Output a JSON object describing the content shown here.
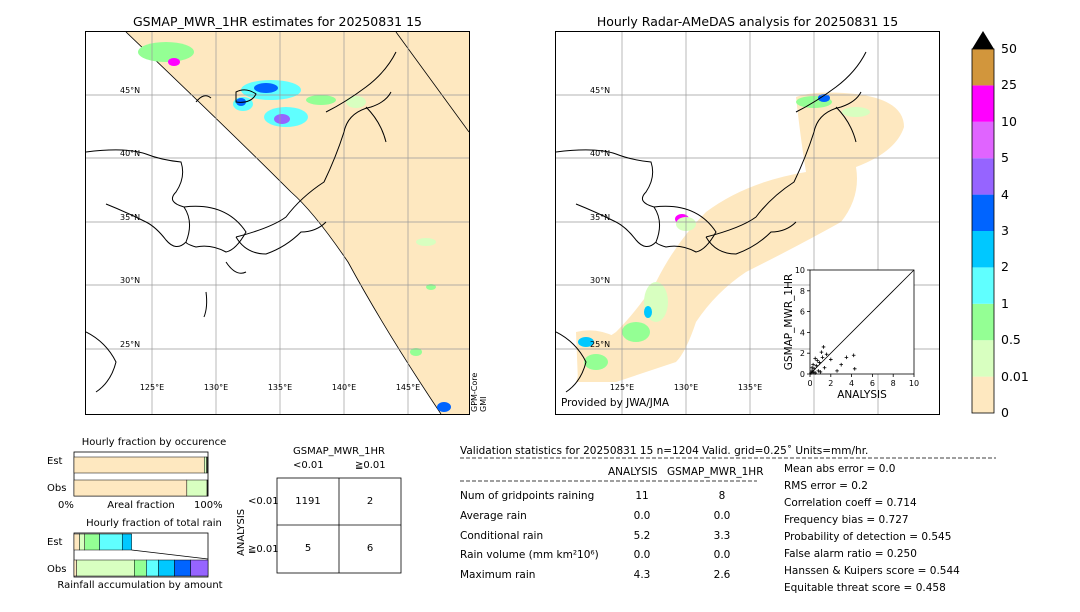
{
  "left_map": {
    "title": "GSMAP_MWR_1HR estimates for 20250831 15",
    "lat_labels": [
      "45°N",
      "40°N",
      "35°N",
      "30°N",
      "25°N"
    ],
    "lon_labels": [
      "125°E",
      "130°E",
      "135°E",
      "140°E",
      "145°E"
    ],
    "sat_label": "GPM-Core\nGMI"
  },
  "right_map": {
    "title": "Hourly Radar-AMeDAS analysis for 20250831 15",
    "lat_labels": [
      "45°N",
      "40°N",
      "35°N",
      "30°N",
      "25°N"
    ],
    "lon_labels": [
      "125°E",
      "130°E",
      "135°E"
    ],
    "credit": "Provided by JWA/JMA"
  },
  "colorbar": {
    "levels": [
      "0",
      "0.01",
      "0.5",
      "1",
      "2",
      "3",
      "4",
      "5",
      "10",
      "25",
      "50"
    ],
    "colors": [
      "#fee8c0",
      "#d8ffc0",
      "#94ff94",
      "#60ffff",
      "#00c8ff",
      "#0064ff",
      "#9664ff",
      "#e064ff",
      "#ff00ff",
      "#d2963c"
    ],
    "extend_color": "#000000"
  },
  "chart_data": [
    {
      "type": "scatter",
      "title": "",
      "xlabel": "ANALYSIS",
      "ylabel": "GSMAP_MWR_1HR",
      "xlim": [
        0,
        10
      ],
      "ylim": [
        0,
        10
      ],
      "xticks": [
        "0",
        "2",
        "4",
        "6",
        "8",
        "10"
      ],
      "yticks": [
        "0",
        "2",
        "4",
        "6",
        "8",
        "10"
      ],
      "points": [
        [
          0.1,
          0.1
        ],
        [
          0.2,
          0.3
        ],
        [
          0.3,
          0.2
        ],
        [
          0.4,
          0.5
        ],
        [
          0.5,
          0.1
        ],
        [
          0.6,
          0.8
        ],
        [
          0.2,
          0.6
        ],
        [
          0.8,
          0.3
        ],
        [
          1.0,
          0.2
        ],
        [
          0.9,
          1.1
        ],
        [
          1.2,
          1.6
        ],
        [
          1.4,
          0.6
        ],
        [
          1.6,
          1.9
        ],
        [
          0.7,
          1.3
        ],
        [
          1.1,
          2.1
        ],
        [
          1.3,
          2.6
        ],
        [
          2.0,
          1.4
        ],
        [
          2.6,
          0.3
        ],
        [
          3.0,
          0.9
        ],
        [
          3.5,
          1.6
        ],
        [
          4.2,
          1.8
        ],
        [
          4.3,
          0.5
        ],
        [
          0.3,
          0.9
        ],
        [
          0.5,
          1.5
        ]
      ]
    },
    {
      "type": "bar",
      "title": "Hourly fraction by occurence",
      "categories": [
        "Est",
        "Obs"
      ],
      "xlabel_left": "0%",
      "xlabel_center": "Areal fraction",
      "xlabel_right": "100%",
      "series": [
        {
          "values": [
            0.972,
            0.842
          ],
          "color": "#fee8c0"
        },
        {
          "values": [
            0.018,
            0.151
          ],
          "color": "#d8ffc0"
        },
        {
          "values": [
            0.01,
            0.007
          ],
          "color": "#2a2a2a"
        }
      ]
    },
    {
      "type": "bar",
      "title": "Hourly fraction of total rain",
      "categories": [
        "Est",
        "Obs"
      ],
      "xlabel_center": "Rainfall accumulation by amount",
      "series_colors": [
        "#fee8c0",
        "#d8ffc0",
        "#94ff94",
        "#60ffff",
        "#00c8ff",
        "#0064ff",
        "#9664ff"
      ],
      "est_segments": [
        0.04,
        0.04,
        0.11,
        0.17,
        0.07
      ],
      "obs_segments": [
        0.02,
        0.43,
        0.09,
        0.09,
        0.12,
        0.12,
        0.13
      ]
    }
  ],
  "contingency": {
    "title": "GSMAP_MWR_1HR",
    "col_headers": [
      "<0.01",
      "≧0.01"
    ],
    "row_axis_label": "ANALYSIS",
    "row_headers": [
      "<0.01",
      "≧0.01"
    ],
    "cells": [
      [
        "1191",
        "2"
      ],
      [
        "5",
        "6"
      ]
    ]
  },
  "validation": {
    "header": "Validation statistics for 20250831 15  n=1204 Valid. grid=0.25˚ Units=mm/hr.",
    "col_analysis": "ANALYSIS",
    "col_gsmap": "GSMAP_MWR_1HR",
    "rows": [
      {
        "label": "Num of gridpoints raining",
        "analysis": "11",
        "gsmap": "8"
      },
      {
        "label": "Average rain",
        "analysis": "0.0",
        "gsmap": "0.0"
      },
      {
        "label": "Conditional rain",
        "analysis": "5.2",
        "gsmap": "3.3"
      },
      {
        "label": "Rain volume (mm km²10⁶)",
        "analysis": "0.0",
        "gsmap": "0.0"
      },
      {
        "label": "Maximum rain",
        "analysis": "4.3",
        "gsmap": "2.6"
      }
    ],
    "scores": [
      "Mean abs error =    0.0",
      "RMS error =    0.2",
      "Correlation coeff =  0.714",
      "Frequency bias =  0.727",
      "Probability of detection =  0.545",
      "False alarm ratio =  0.250",
      "Hanssen & Kuipers score =  0.544",
      "Equitable threat score =  0.458"
    ]
  }
}
